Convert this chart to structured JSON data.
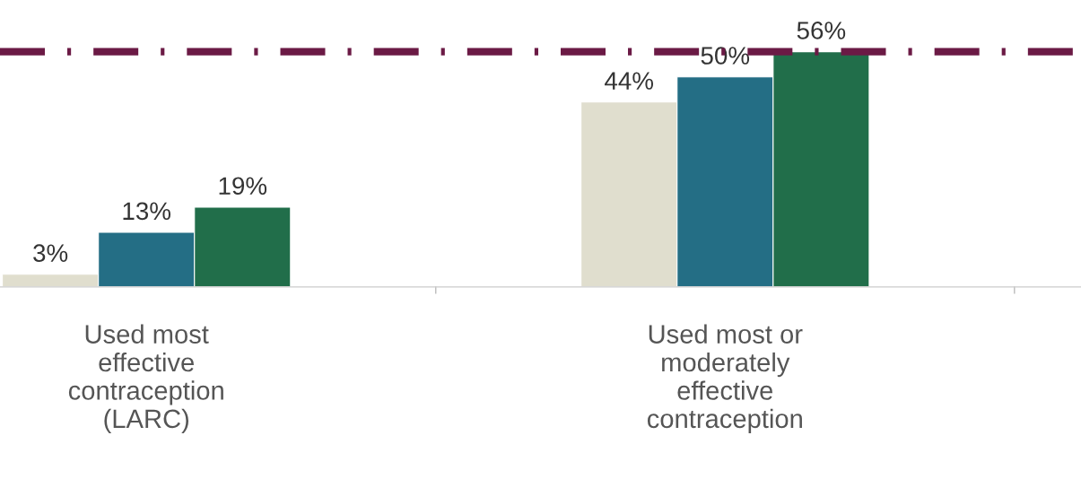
{
  "chart_data": {
    "type": "bar",
    "categories": [
      "Used most\neffective\ncontraception\n(LARC)",
      "Used most or\nmoderately\neffective\ncontraception"
    ],
    "series": [
      {
        "color": "#e0dece",
        "values": [
          3,
          44
        ],
        "value_labels": [
          "3%",
          "44%"
        ]
      },
      {
        "color": "#246e85",
        "values": [
          13,
          50
        ],
        "value_labels": [
          "13%",
          "50%"
        ]
      },
      {
        "color": "#216e4a",
        "values": [
          19,
          56
        ],
        "value_labels": [
          "19%",
          "56%"
        ]
      }
    ],
    "ref_lines": [
      {
        "axis": "y",
        "value": 56,
        "color": "#6b1a45",
        "line_style": "dashdot"
      }
    ],
    "grid": false,
    "legend": false
  }
}
